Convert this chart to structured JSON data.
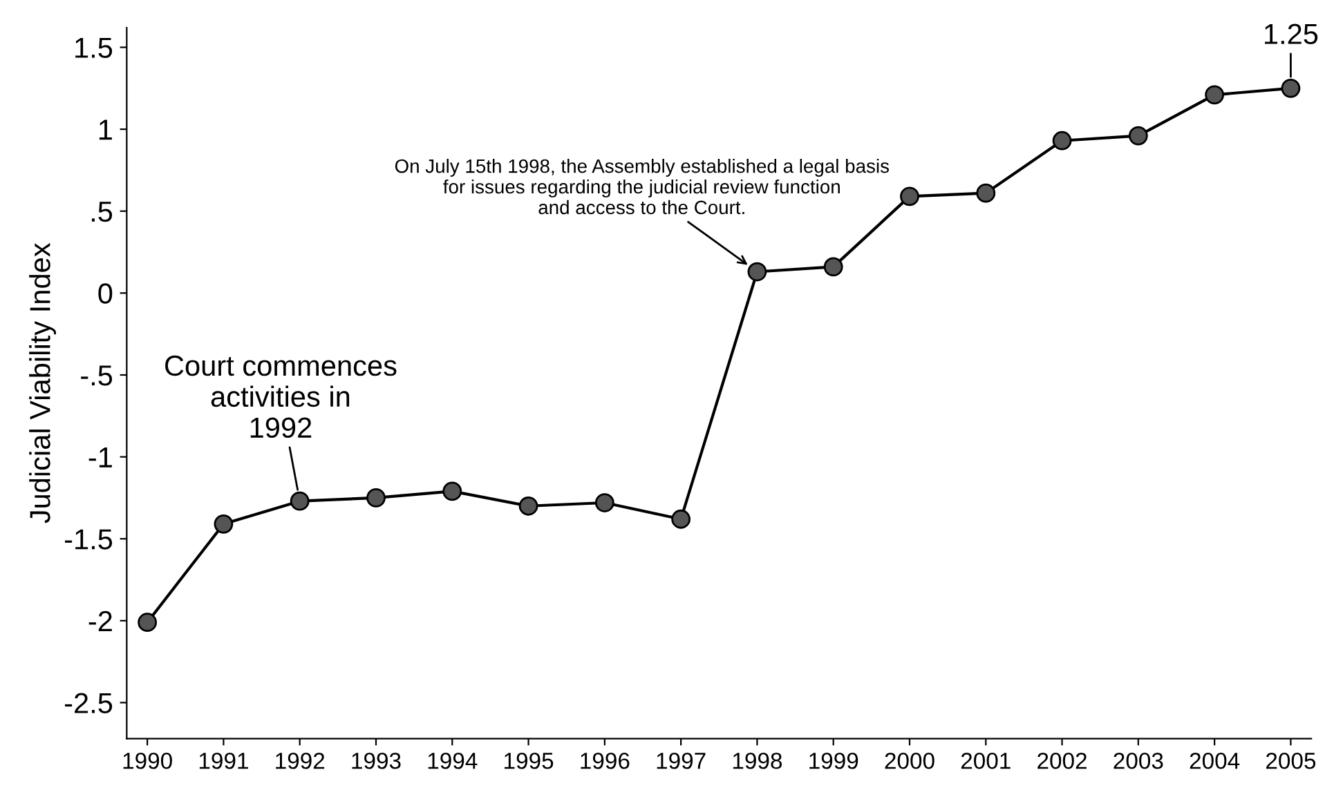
{
  "chart_data": {
    "type": "line",
    "ylabel": "Judicial Viability Index",
    "x": [
      1990,
      1991,
      1992,
      1993,
      1994,
      1995,
      1996,
      1997,
      1998,
      1999,
      2000,
      2001,
      2002,
      2003,
      2004,
      2005
    ],
    "series": [
      {
        "color": "#000000",
        "values": [
          -2.01,
          -1.41,
          -1.27,
          -1.25,
          -1.21,
          -1.3,
          -1.28,
          -1.38,
          0.13,
          0.16,
          0.59,
          0.61,
          0.93,
          0.96,
          1.21,
          1.25
        ]
      }
    ],
    "xlim": [
      1989.73,
      2005.27
    ],
    "xticks": [
      1990,
      1991,
      1992,
      1993,
      1994,
      1995,
      1996,
      1997,
      1998,
      1999,
      2000,
      2001,
      2002,
      2003,
      2004,
      2005
    ],
    "ylim": [
      -2.72,
      1.62
    ],
    "yticks": [
      -2.5,
      -2,
      -1.5,
      -1,
      {
        "value": -0.5,
        "label": "-.5"
      },
      0,
      {
        "value": 0.5,
        "label": ".5"
      },
      1,
      1.5
    ],
    "annotations": [
      {
        "text": "1.25",
        "x": 2005,
        "y": 1.25
      },
      {
        "text": "Court commences\nactivities in\n1992",
        "x": 1992,
        "y": -1.27
      },
      {
        "text": "On July 15th 1998, the Assembly established a legal basis\nfor issues regarding the judicial review function\nand access to the Court.",
        "x": 1998,
        "y": 0.13
      }
    ],
    "grid": false,
    "legend": false,
    "marker": "circle",
    "line_style": "solid"
  }
}
